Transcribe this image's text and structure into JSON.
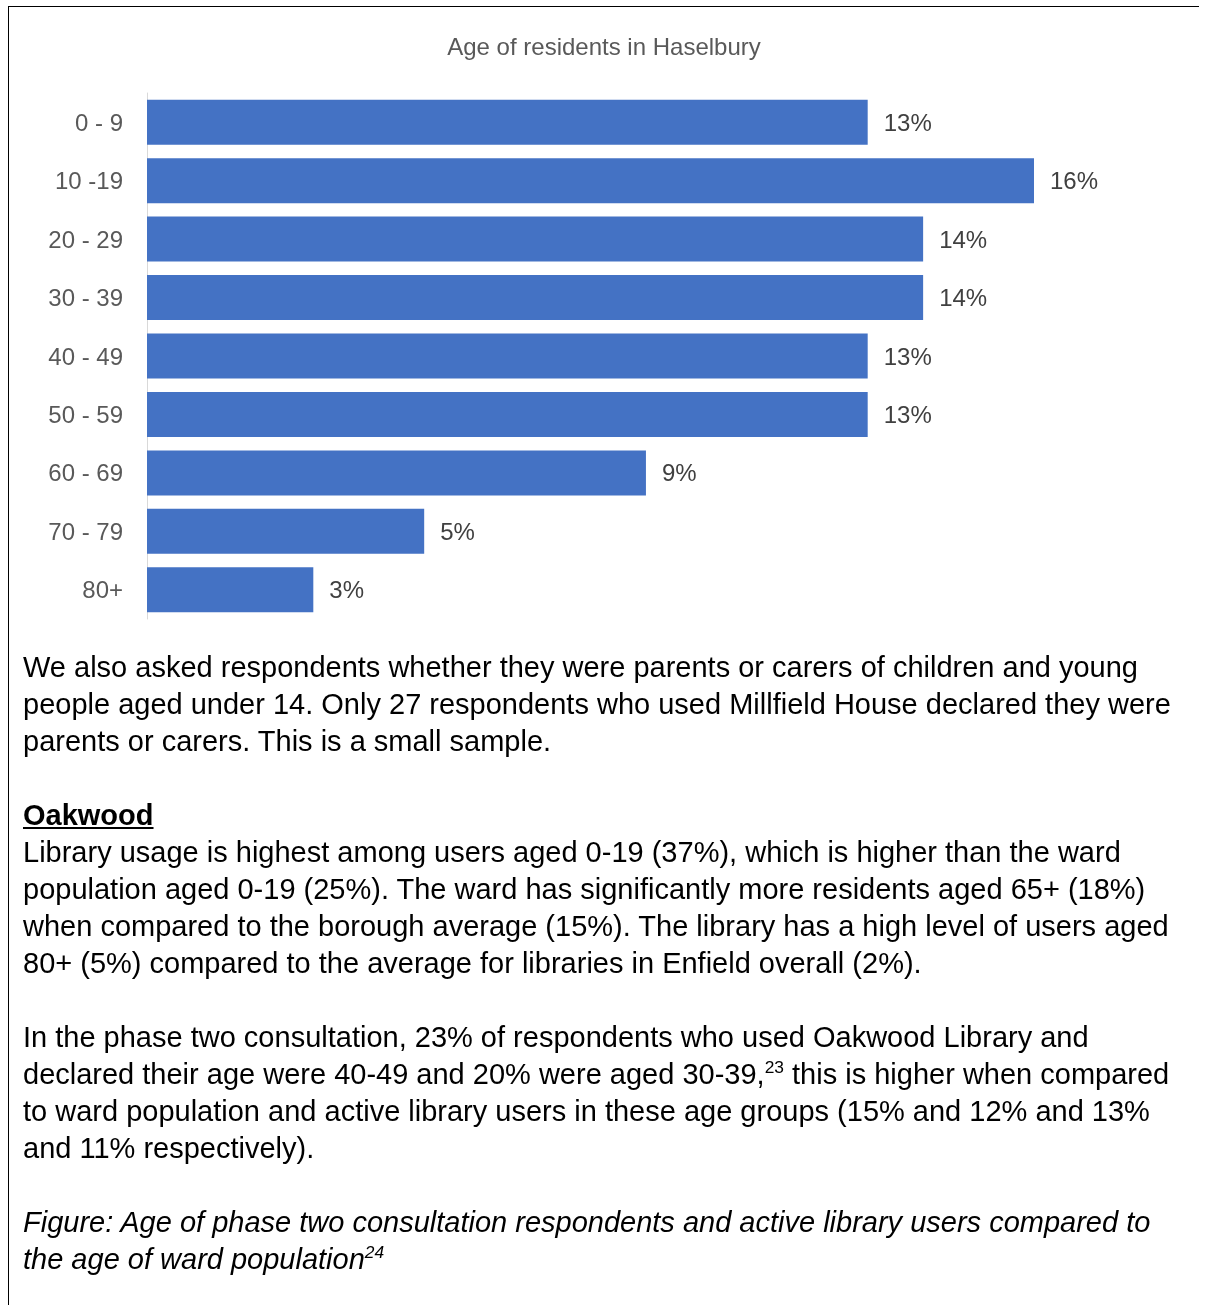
{
  "chart_data": {
    "type": "bar",
    "orientation": "horizontal",
    "title": "Age of residents in Haselbury",
    "categories": [
      "0 - 9",
      "10 -19",
      "20 - 29",
      "30 - 39",
      "40 - 49",
      "50 - 59",
      "60 - 69",
      "70 - 79",
      "80+"
    ],
    "values": [
      13,
      16,
      14,
      14,
      13,
      13,
      9,
      5,
      3
    ],
    "value_labels": [
      "13%",
      "16%",
      "14%",
      "14%",
      "13%",
      "13%",
      "9%",
      "5%",
      "3%"
    ],
    "color": "#4472c4",
    "grid": false,
    "annotations": [
      "We also asked respondents whether they were parents or carers of children and young people aged under 14. Only 27 respondents who used Millfield House declared they were parents or carers. This is a small sample.",
      "Oakwood",
      "Library usage is highest among users aged 0-19 (37%), which is higher than the ward population aged 0-19 (25%). The ward has significantly more residents aged 65+ (18%) when compared to the borough average (15%). The library has a high level of users aged 80+ (5%) compared to the average for libraries in Enfield overall (2%).",
      "In the phase two consultation, 23% of respondents who used Oakwood Library and declared their age were 40-49 and 20% were aged 30-39,$^{23}$ this is higher when compared to ward population and active library users in these age groups (15% and 12% and 13% and 11% respectively).",
      "Figure: Age of phase two consultation respondents and active library users compared to the age of ward population$^{24}$"
    ]
  }
}
